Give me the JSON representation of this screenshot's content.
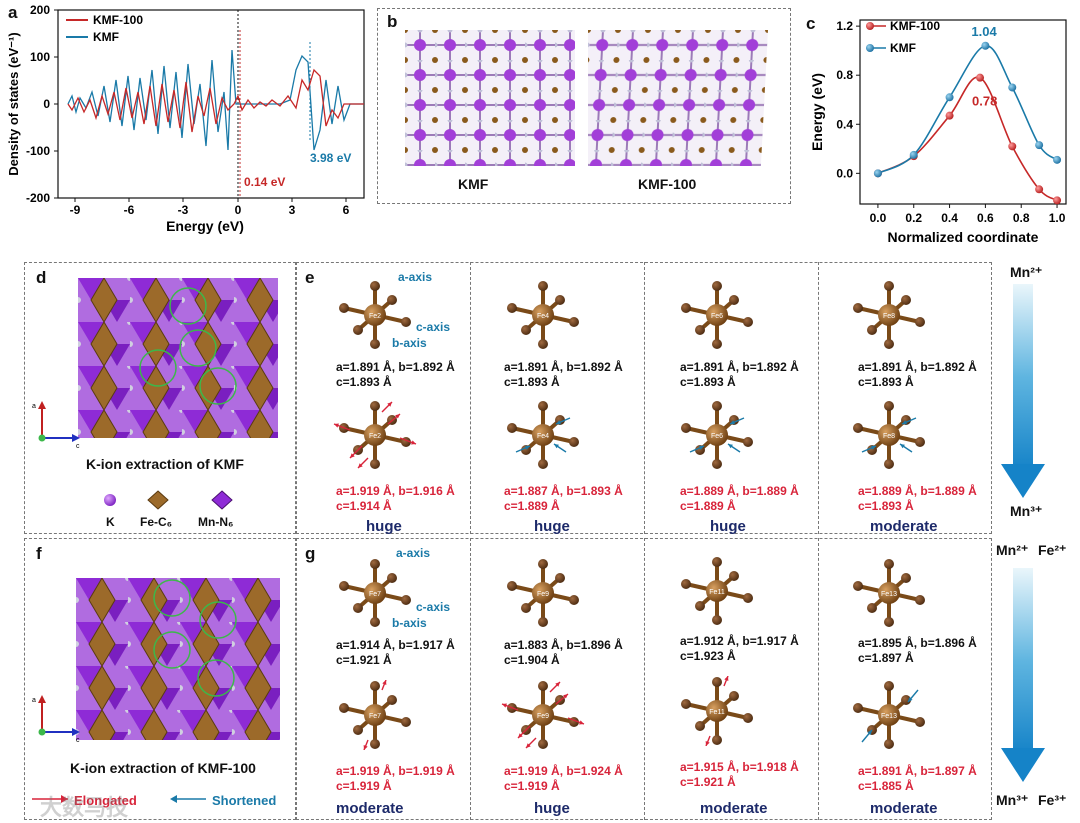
{
  "panels": {
    "a": "a",
    "b": "b",
    "c": "c",
    "d": "d",
    "e": "e",
    "f": "f",
    "g": "g"
  },
  "colors": {
    "kmf100": "#c62828",
    "kmf": "#1a7aa8",
    "red_text": "#d8243a",
    "blue_text": "#1a7aa8",
    "purple": "#8e2bd6",
    "brown": "#8a5a1c",
    "level": "#1d2a6a"
  },
  "panel_a": {
    "ylabel": "Density of states (eV⁻¹)",
    "xlabel": "Energy (eV)",
    "yticks": [
      "200",
      "100",
      "0",
      "-100",
      "-200"
    ],
    "xticks": [
      "-9",
      "-6",
      "-3",
      "0",
      "3",
      "6"
    ],
    "legend": [
      "KMF-100",
      "KMF"
    ],
    "gap1": "0.14 eV",
    "gap2": "3.98 eV"
  },
  "panel_b": {
    "labels": [
      "KMF",
      "KMF-100"
    ]
  },
  "chart_data": {
    "type": "line",
    "xlabel": "Normalized coordinate",
    "ylabel": "Energy (eV)",
    "xlim": [
      -0.1,
      1.05
    ],
    "ylim": [
      -0.25,
      1.25
    ],
    "xticks": [
      "0.0",
      "0.2",
      "0.4",
      "0.6",
      "0.8",
      "1.0"
    ],
    "yticks": [
      "1.2",
      "0.8",
      "0.4",
      "0.0"
    ],
    "legend_position": "top-left",
    "series": [
      {
        "name": "KMF-100",
        "color": "#c62828",
        "x": [
          0.0,
          0.2,
          0.4,
          0.57,
          0.75,
          0.9,
          1.0
        ],
        "y": [
          0.0,
          0.14,
          0.47,
          0.78,
          0.22,
          -0.13,
          -0.22
        ]
      },
      {
        "name": "KMF",
        "color": "#1a7aa8",
        "x": [
          0.0,
          0.2,
          0.4,
          0.6,
          0.75,
          0.9,
          1.0
        ],
        "y": [
          0.0,
          0.15,
          0.62,
          1.04,
          0.7,
          0.23,
          0.11
        ]
      }
    ],
    "annotations": [
      "1.04",
      "0.78"
    ]
  },
  "panel_d": {
    "caption": "K-ion extraction of KMF",
    "legend": [
      "K",
      "Fe-C₆",
      "Mn-N₆"
    ],
    "axis_a": "a",
    "axis_c": "c"
  },
  "panel_e": {
    "axis_labels": {
      "a": "a-axis",
      "c": "c-axis",
      "b": "b-axis"
    },
    "columns": [
      {
        "fe": "Fe2",
        "before": [
          "a=1.891 Å, b=1.892 Å",
          "c=1.893 Å"
        ],
        "after": [
          "a=1.919 Å, b=1.916 Å",
          "c=1.914 Å"
        ],
        "level": "huge"
      },
      {
        "fe": "Fe4",
        "before": [
          "a=1.891 Å, b=1.892 Å",
          "c=1.893 Å"
        ],
        "after": [
          "a=1.887 Å, b=1.893 Å",
          "c=1.889 Å"
        ],
        "level": "huge"
      },
      {
        "fe": "Fe6",
        "before": [
          "a=1.891 Å, b=1.892 Å",
          "c=1.893 Å"
        ],
        "after": [
          "a=1.889 Å, b=1.889 Å",
          "c=1.889 Å"
        ],
        "level": "huge"
      },
      {
        "fe": "Fe8",
        "before": [
          "a=1.891 Å, b=1.892 Å",
          "c=1.893 Å"
        ],
        "after": [
          "a=1.889 Å, b=1.889 Å",
          "c=1.893 Å"
        ],
        "level": "moderate"
      }
    ],
    "arrow_top": "Mn²⁺",
    "arrow_bottom": "Mn³⁺"
  },
  "panel_f": {
    "caption": "K-ion extraction of KMF-100",
    "elongated": "Elongated",
    "shortened": "Shortened",
    "axis_a": "a",
    "axis_c": "c"
  },
  "panel_g": {
    "axis_labels": {
      "a": "a-axis",
      "c": "c-axis",
      "b": "b-axis"
    },
    "columns": [
      {
        "fe": "Fe7",
        "before": [
          "a=1.914 Å, b=1.917 Å",
          "c=1.921 Å"
        ],
        "after": [
          "a=1.919 Å, b=1.919 Å",
          "c=1.919 Å"
        ],
        "level": "moderate"
      },
      {
        "fe": "Fe9",
        "before": [
          "a=1.883 Å, b=1.896 Å",
          "c=1.904 Å"
        ],
        "after": [
          "a=1.919 Å, b=1.924 Å",
          "c=1.919 Å"
        ],
        "level": "huge"
      },
      {
        "fe": "Fe11",
        "before": [
          "a=1.912 Å, b=1.917 Å",
          "c=1.923 Å"
        ],
        "after": [
          "a=1.915 Å, b=1.918 Å",
          "c=1.921 Å"
        ],
        "level": "moderate"
      },
      {
        "fe": "Fe13",
        "before": [
          "a=1.895 Å, b=1.896 Å",
          "c=1.897 Å"
        ],
        "after": [
          "a=1.891 Å, b=1.897 Å",
          "c=1.885 Å"
        ],
        "level": "moderate"
      }
    ],
    "arrow_top_mn": "Mn²⁺",
    "arrow_top_fe": "Fe²⁺",
    "arrow_bottom_mn": "Mn³⁺",
    "arrow_bottom_fe": "Fe³⁺"
  },
  "watermark": "大数马技"
}
